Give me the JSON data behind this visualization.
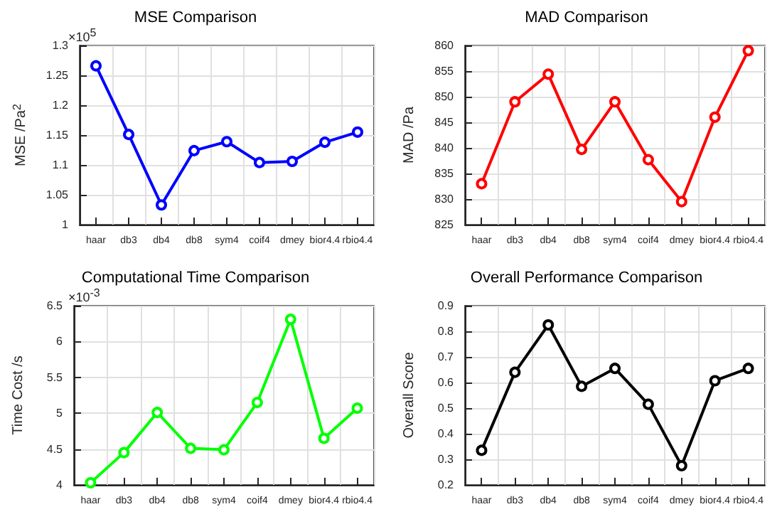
{
  "chart_data": [
    {
      "type": "line",
      "title": "MSE Comparison",
      "ylabel": "MSE /Pa$^{2}$",
      "annotations": [
        "×10$^{5}$"
      ],
      "categories": [
        "haar",
        "db3",
        "db4",
        "db8",
        "sym4",
        "coif4",
        "dmey",
        "bior4.4",
        "rbio4.4"
      ],
      "series": [
        {
          "color": "#0000ff",
          "values": [
            1.266,
            1.151,
            1.033,
            1.124,
            1.139,
            1.104,
            1.106,
            1.138,
            1.155
          ]
        }
      ],
      "ylim": [
        1,
        1.3
      ],
      "yticks": [
        1,
        1.05,
        1.1,
        1.15,
        1.2,
        1.25,
        1.3
      ],
      "grid": true,
      "marker": "circle"
    },
    {
      "type": "line",
      "title": "MAD Comparison",
      "ylabel": "MAD /Pa",
      "categories": [
        "haar",
        "db3",
        "db4",
        "db8",
        "sym4",
        "coif4",
        "dmey",
        "bior4.4",
        "rbio4.4"
      ],
      "series": [
        {
          "color": "#ff0000",
          "values": [
            833,
            849,
            854.4,
            839.7,
            849,
            837.7,
            829.5,
            846,
            859
          ]
        }
      ],
      "ylim": [
        825,
        860
      ],
      "yticks": [
        825,
        830,
        835,
        840,
        845,
        850,
        855,
        860
      ],
      "grid": true,
      "marker": "circle"
    },
    {
      "type": "line",
      "title": "Computational Time Comparison",
      "ylabel": "Time Cost /s",
      "annotations": [
        "×10$^{-3}$"
      ],
      "categories": [
        "haar",
        "db3",
        "db4",
        "db8",
        "sym4",
        "coif4",
        "dmey",
        "bior4.4",
        "rbio4.4"
      ],
      "series": [
        {
          "color": "#00ff00",
          "values": [
            4.03,
            4.45,
            5.01,
            4.51,
            4.49,
            5.15,
            6.31,
            4.65,
            5.07
          ]
        }
      ],
      "ylim": [
        4,
        6.5
      ],
      "yticks": [
        4,
        4.5,
        5,
        5.5,
        6,
        6.5
      ],
      "grid": true,
      "marker": "circle"
    },
    {
      "type": "line",
      "title": "Overall Performance Comparison",
      "ylabel": "Overall Score",
      "categories": [
        "haar",
        "db3",
        "db4",
        "db8",
        "sym4",
        "coif4",
        "dmey",
        "bior4.4",
        "rbio4.4"
      ],
      "series": [
        {
          "color": "#000000",
          "values": [
            0.335,
            0.64,
            0.825,
            0.585,
            0.655,
            0.515,
            0.275,
            0.607,
            0.655
          ]
        }
      ],
      "ylim": [
        0.2,
        0.9
      ],
      "yticks": [
        0.2,
        0.3,
        0.4,
        0.5,
        0.6,
        0.7,
        0.8,
        0.9
      ],
      "grid": true,
      "marker": "circle"
    }
  ]
}
